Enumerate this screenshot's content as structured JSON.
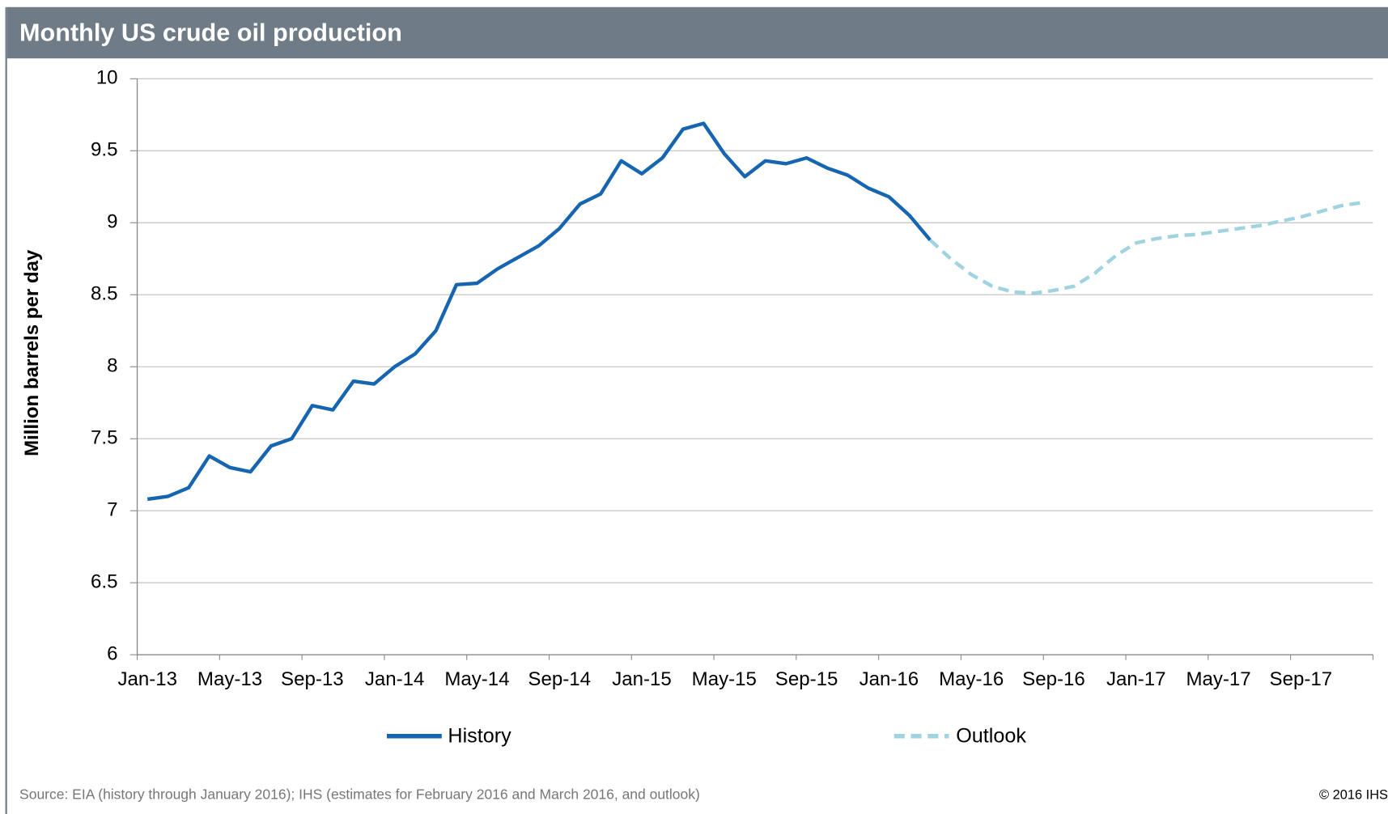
{
  "chart_data": {
    "type": "line",
    "title": "Monthly US crude oil production",
    "y_label": "Million barrels per day",
    "source": "Source: EIA (history through January 2016); IHS (estimates for February 2016 and March 2016, and outlook)",
    "copyright": "© 2016 IHS",
    "categories": [
      "Jan-13",
      null,
      null,
      null,
      "May-13",
      null,
      null,
      null,
      "Sep-13",
      null,
      null,
      null,
      "Jan-14",
      null,
      null,
      null,
      "May-14",
      null,
      null,
      null,
      "Sep-14",
      null,
      null,
      null,
      "Jan-15",
      null,
      null,
      null,
      "May-15",
      null,
      null,
      null,
      "Sep-15",
      null,
      null,
      null,
      "Jan-16",
      null,
      null,
      null,
      "May-16",
      null,
      null,
      null,
      "Sep-16",
      null,
      null,
      null,
      "Jan-17",
      null,
      null,
      null,
      "May-17",
      null,
      null,
      null,
      "Sep-17",
      null,
      null,
      null
    ],
    "series": [
      {
        "name": "History",
        "color": "#1565b0",
        "dashed": false,
        "values": [
          7.08,
          7.1,
          7.16,
          7.38,
          7.3,
          7.27,
          7.45,
          7.5,
          7.73,
          7.7,
          7.9,
          7.88,
          8.0,
          8.09,
          8.25,
          8.57,
          8.58,
          8.68,
          8.76,
          8.84,
          8.96,
          9.13,
          9.2,
          9.43,
          9.34,
          9.45,
          9.65,
          9.69,
          9.48,
          9.32,
          9.43,
          9.41,
          9.45,
          9.38,
          9.33,
          9.24,
          9.18,
          9.05,
          8.88,
          null,
          null,
          null,
          null,
          null,
          null,
          null,
          null,
          null,
          null,
          null,
          null,
          null,
          null,
          null,
          null,
          null,
          null,
          null,
          null,
          null
        ]
      },
      {
        "name": "Outlook",
        "color": "#9fd3df",
        "dashed": true,
        "values": [
          null,
          null,
          null,
          null,
          null,
          null,
          null,
          null,
          null,
          null,
          null,
          null,
          null,
          null,
          null,
          null,
          null,
          null,
          null,
          null,
          null,
          null,
          null,
          null,
          null,
          null,
          null,
          null,
          null,
          null,
          null,
          null,
          null,
          null,
          null,
          null,
          null,
          null,
          8.88,
          8.75,
          8.64,
          8.56,
          8.52,
          8.51,
          8.53,
          8.56,
          8.65,
          8.77,
          8.86,
          8.89,
          8.91,
          8.92,
          8.94,
          8.96,
          8.98,
          9.01,
          9.04,
          9.08,
          9.12,
          9.14
        ]
      }
    ],
    "ylim": [
      6,
      10
    ],
    "yticks": [
      6,
      6.5,
      7,
      7.5,
      8,
      8.5,
      9,
      9.5,
      10
    ],
    "grid": true,
    "legend": "bottom"
  }
}
